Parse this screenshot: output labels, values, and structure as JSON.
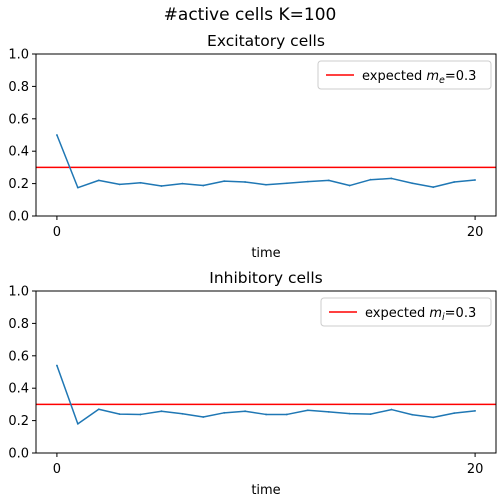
{
  "figure": {
    "suptitle": "#active cells K=100"
  },
  "chart_data": [
    {
      "type": "line",
      "title": "Excitatory cells",
      "xlabel": "time",
      "ylabel": "",
      "ylim": [
        0,
        1.0
      ],
      "xlim": [
        -1,
        21
      ],
      "xticks": [
        0,
        20
      ],
      "yticks": [
        0.0,
        0.2,
        0.4,
        0.6,
        0.8,
        1.0
      ],
      "grid": false,
      "legend": {
        "position": "top-right",
        "entries": [
          {
            "prefix": "expected ",
            "math_base": "m",
            "math_sub": "e",
            "suffix": "=0.3",
            "color": "#ff0000"
          }
        ]
      },
      "series": [
        {
          "color": "#1f77b4",
          "x": [
            0,
            1,
            2,
            3,
            4,
            5,
            6,
            7,
            8,
            9,
            10,
            11,
            12,
            13,
            14,
            15,
            16,
            17,
            18,
            19,
            20
          ],
          "values": [
            0.5,
            0.175,
            0.22,
            0.195,
            0.205,
            0.185,
            0.2,
            0.188,
            0.215,
            0.21,
            0.193,
            0.202,
            0.212,
            0.22,
            0.188,
            0.224,
            0.232,
            0.202,
            0.178,
            0.21,
            0.222
          ]
        }
      ],
      "hlines": [
        {
          "y": 0.3,
          "color": "#ff0000"
        }
      ]
    },
    {
      "type": "line",
      "title": "Inhibitory cells",
      "xlabel": "time",
      "ylabel": "",
      "ylim": [
        0,
        1.0
      ],
      "xlim": [
        -1,
        21
      ],
      "xticks": [
        0,
        20
      ],
      "yticks": [
        0.0,
        0.2,
        0.4,
        0.6,
        0.8,
        1.0
      ],
      "grid": false,
      "legend": {
        "position": "top-right",
        "entries": [
          {
            "prefix": "expected ",
            "math_base": "m",
            "math_sub": "i",
            "suffix": "=0.3",
            "color": "#ff0000"
          }
        ]
      },
      "series": [
        {
          "color": "#1f77b4",
          "x": [
            0,
            1,
            2,
            3,
            4,
            5,
            6,
            7,
            8,
            9,
            10,
            11,
            12,
            13,
            14,
            15,
            16,
            17,
            18,
            19,
            20
          ],
          "values": [
            0.54,
            0.18,
            0.27,
            0.24,
            0.238,
            0.258,
            0.242,
            0.222,
            0.248,
            0.258,
            0.238,
            0.238,
            0.264,
            0.254,
            0.243,
            0.24,
            0.268,
            0.236,
            0.22,
            0.246,
            0.26
          ]
        }
      ],
      "hlines": [
        {
          "y": 0.3,
          "color": "#ff0000"
        }
      ]
    }
  ]
}
